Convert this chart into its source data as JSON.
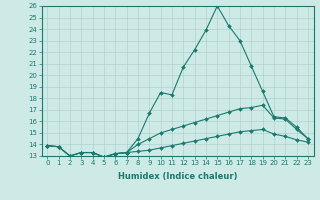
{
  "xlabel": "Humidex (Indice chaleur)",
  "background_color": "#ceeae7",
  "grid_color": "#aacccc",
  "line_color": "#1a7a6e",
  "xlim": [
    -0.5,
    23.5
  ],
  "ylim": [
    13,
    26
  ],
  "xticks": [
    0,
    1,
    2,
    3,
    4,
    5,
    6,
    7,
    8,
    9,
    10,
    11,
    12,
    13,
    14,
    15,
    16,
    17,
    18,
    19,
    20,
    21,
    22,
    23
  ],
  "yticks": [
    13,
    14,
    15,
    16,
    17,
    18,
    19,
    20,
    21,
    22,
    23,
    24,
    25,
    26
  ],
  "line1_x": [
    0,
    1,
    2,
    3,
    4,
    5,
    6,
    7,
    8,
    9,
    10,
    11,
    12,
    13,
    14,
    15,
    16,
    17,
    18,
    19,
    20,
    21,
    22,
    23
  ],
  "line1_y": [
    13.9,
    13.8,
    13.0,
    13.3,
    13.3,
    12.9,
    13.2,
    13.3,
    14.5,
    16.7,
    18.5,
    18.3,
    20.7,
    22.2,
    23.9,
    26.0,
    24.3,
    23.0,
    20.8,
    18.6,
    16.4,
    16.3,
    15.5,
    14.5
  ],
  "line2_x": [
    0,
    1,
    2,
    3,
    4,
    5,
    6,
    7,
    8,
    9,
    10,
    11,
    12,
    13,
    14,
    15,
    16,
    17,
    18,
    19,
    20,
    21,
    22,
    23
  ],
  "line2_y": [
    13.9,
    13.8,
    13.0,
    13.3,
    13.3,
    12.9,
    13.2,
    13.3,
    14.0,
    14.5,
    15.0,
    15.3,
    15.6,
    15.9,
    16.2,
    16.5,
    16.8,
    17.1,
    17.2,
    17.4,
    16.3,
    16.2,
    15.3,
    14.5
  ],
  "line3_x": [
    0,
    1,
    2,
    3,
    4,
    5,
    6,
    7,
    8,
    9,
    10,
    11,
    12,
    13,
    14,
    15,
    16,
    17,
    18,
    19,
    20,
    21,
    22,
    23
  ],
  "line3_y": [
    13.9,
    13.8,
    13.0,
    13.3,
    13.3,
    12.9,
    13.2,
    13.3,
    13.4,
    13.5,
    13.7,
    13.9,
    14.1,
    14.3,
    14.5,
    14.7,
    14.9,
    15.1,
    15.2,
    15.3,
    14.9,
    14.7,
    14.4,
    14.2
  ],
  "tick_fontsize": 5.0,
  "xlabel_fontsize": 6.0
}
